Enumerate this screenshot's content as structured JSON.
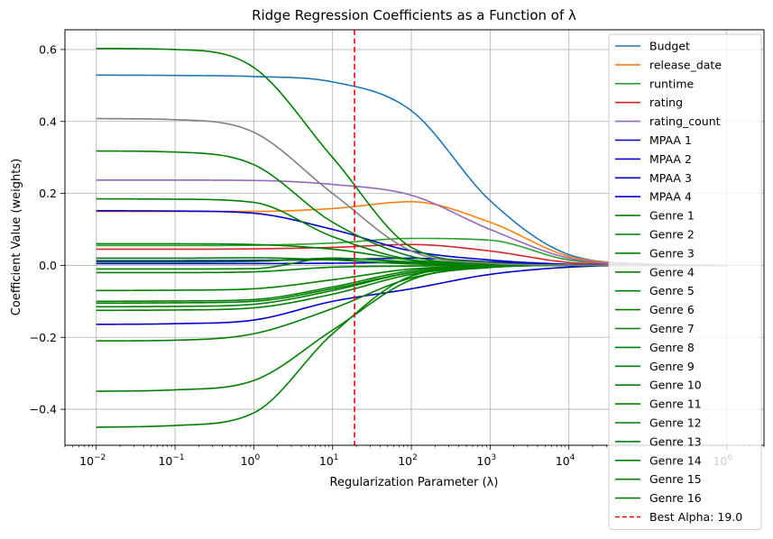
{
  "chart_data": {
    "type": "line",
    "title": "Ridge Regression Coefficients as a Function of λ",
    "xlabel": "Regularization Parameter (λ)",
    "ylabel": "Coefficient Value (weights)",
    "x_scale": "log",
    "xlim": [
      0.004,
      3000000
    ],
    "ylim": [
      -0.5,
      0.655
    ],
    "x_ticks": [
      0.01,
      0.1,
      1,
      10,
      100,
      1000,
      10000,
      1000000
    ],
    "x_tick_labels": [
      {
        "base": "10",
        "exp": "−2"
      },
      {
        "base": "10",
        "exp": "−1"
      },
      {
        "base": "10",
        "exp": "0"
      },
      {
        "base": "10",
        "exp": "1"
      },
      {
        "base": "10",
        "exp": "2"
      },
      {
        "base": "10",
        "exp": "3"
      },
      {
        "base": "10",
        "exp": "4"
      },
      {
        "base": "10",
        "exp": "6"
      }
    ],
    "y_ticks": [
      -0.4,
      -0.2,
      0.0,
      0.2,
      0.4,
      0.6
    ],
    "y_tick_labels": [
      "−0.4",
      "−0.2",
      "0.0",
      "0.2",
      "0.4",
      "0.6"
    ],
    "grid": true,
    "legend_position": "right",
    "x": [
      0.01,
      0.1,
      1,
      10,
      100,
      1000,
      10000,
      100000,
      1000000
    ],
    "series": [
      {
        "name": "Budget",
        "color": "#1f77b4",
        "values": [
          0.529,
          0.528,
          0.525,
          0.51,
          0.43,
          0.18,
          0.03,
          0.004,
          0.0
        ]
      },
      {
        "name": "release_date",
        "color": "#ff7f0e",
        "values": [
          0.15,
          0.15,
          0.15,
          0.158,
          0.177,
          0.12,
          0.025,
          0.003,
          0.0
        ]
      },
      {
        "name": "runtime",
        "color": "#2ca02c",
        "values": [
          0.055,
          0.055,
          0.056,
          0.062,
          0.075,
          0.07,
          0.015,
          0.002,
          0.0
        ]
      },
      {
        "name": "rating",
        "color": "#d62728",
        "values": [
          0.045,
          0.045,
          0.046,
          0.05,
          0.058,
          0.04,
          0.008,
          0.001,
          0.0
        ]
      },
      {
        "name": "rating_count",
        "color": "#9467bd",
        "values": [
          0.237,
          0.237,
          0.236,
          0.225,
          0.195,
          0.1,
          0.02,
          0.002,
          0.0
        ]
      },
      {
        "name": "MPAA 1",
        "color": "#0000cc",
        "values": [
          0.152,
          0.151,
          0.145,
          0.1,
          0.04,
          0.015,
          0.003,
          0.0,
          0.0
        ]
      },
      {
        "name": "MPAA 2",
        "color": "#0000cc",
        "values": [
          -0.164,
          -0.162,
          -0.152,
          -0.1,
          -0.065,
          -0.025,
          -0.005,
          0.0,
          0.0
        ]
      },
      {
        "name": "MPAA 3",
        "color": "#0000cc",
        "values": [
          0.013,
          0.013,
          0.014,
          0.016,
          0.02,
          0.01,
          0.002,
          0.0,
          0.0
        ]
      },
      {
        "name": "MPAA 4",
        "color": "#0000cc",
        "values": [
          0.005,
          0.005,
          0.005,
          0.006,
          0.008,
          0.004,
          0.001,
          0.0,
          0.0
        ]
      },
      {
        "name": "Genre 1",
        "color": "#008000",
        "values": [
          0.603,
          0.6,
          0.55,
          0.3,
          0.05,
          0.008,
          0.001,
          0.0,
          0.0
        ]
      },
      {
        "name": "Genre 2",
        "color": "#008000",
        "values": [
          0.318,
          0.315,
          0.28,
          0.12,
          0.025,
          0.004,
          0.0,
          0.0,
          0.0
        ]
      },
      {
        "name": "Genre 3",
        "color": "#008000",
        "values": [
          0.185,
          0.184,
          0.175,
          0.08,
          0.015,
          0.002,
          0.0,
          0.0,
          0.0
        ]
      },
      {
        "name": "Genre 4",
        "color": "#008000",
        "values": [
          0.06,
          0.06,
          0.058,
          0.045,
          0.015,
          0.002,
          0.0,
          0.0,
          0.0
        ]
      },
      {
        "name": "Genre 5",
        "color": "#008000",
        "values": [
          0.01,
          0.01,
          0.011,
          0.02,
          0.01,
          0.002,
          0.0,
          0.0,
          0.0
        ]
      },
      {
        "name": "Genre 6",
        "color": "#008000",
        "values": [
          -0.01,
          -0.01,
          -0.009,
          0.02,
          0.008,
          0.001,
          0.0,
          0.0,
          0.0
        ]
      },
      {
        "name": "Genre 7",
        "color": "#008000",
        "values": [
          -0.02,
          -0.02,
          -0.018,
          -0.005,
          -0.002,
          0.0,
          0.0,
          0.0,
          0.0
        ]
      },
      {
        "name": "Genre 8",
        "color": "#008000",
        "values": [
          -0.07,
          -0.069,
          -0.065,
          -0.04,
          -0.01,
          -0.002,
          0.0,
          0.0,
          0.0
        ]
      },
      {
        "name": "Genre 9",
        "color": "#008000",
        "values": [
          -0.1,
          -0.099,
          -0.095,
          -0.06,
          -0.015,
          -0.003,
          0.0,
          0.0,
          0.0
        ]
      },
      {
        "name": "Genre 10",
        "color": "#008000",
        "values": [
          -0.105,
          -0.104,
          -0.1,
          -0.065,
          -0.02,
          -0.003,
          0.0,
          0.0,
          0.0
        ]
      },
      {
        "name": "Genre 11",
        "color": "#008000",
        "values": [
          -0.115,
          -0.114,
          -0.108,
          -0.07,
          -0.02,
          -0.004,
          0.0,
          0.0,
          0.0
        ]
      },
      {
        "name": "Genre 12",
        "color": "#008000",
        "values": [
          -0.125,
          -0.124,
          -0.118,
          -0.08,
          -0.025,
          -0.004,
          0.0,
          0.0,
          0.0
        ]
      },
      {
        "name": "Genre 13",
        "color": "#008000",
        "values": [
          -0.21,
          -0.208,
          -0.19,
          -0.12,
          -0.035,
          -0.005,
          0.0,
          0.0,
          0.0
        ]
      },
      {
        "name": "Genre 14",
        "color": "#008000",
        "values": [
          -0.35,
          -0.346,
          -0.32,
          -0.18,
          -0.04,
          -0.006,
          0.0,
          0.0,
          0.0
        ]
      },
      {
        "name": "Genre 15",
        "color": "#008000",
        "values": [
          -0.45,
          -0.445,
          -0.41,
          -0.19,
          -0.03,
          -0.005,
          0.0,
          0.0,
          0.0
        ]
      },
      {
        "name": "Genre 16",
        "color": "#008000",
        "values": [
          0.02,
          0.02,
          0.021,
          0.015,
          0.004,
          0.0,
          0.0,
          0.0,
          0.0
        ]
      },
      {
        "name": "",
        "color": "#808080",
        "values": [
          0.408,
          0.405,
          0.37,
          0.2,
          0.04,
          0.006,
          0.001,
          0.0,
          0.0
        ]
      }
    ],
    "vline": {
      "name": "Best Alpha: 19.0",
      "x": 19.0,
      "color": "#ff0000"
    }
  }
}
